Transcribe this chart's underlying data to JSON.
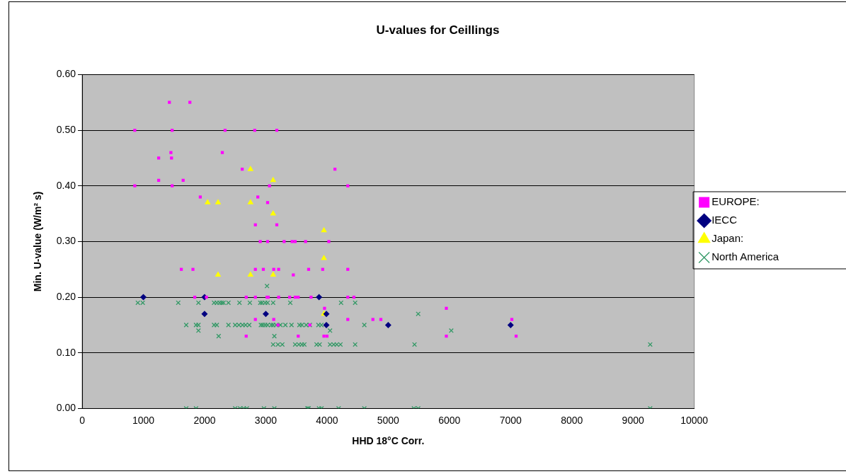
{
  "chart_data": {
    "type": "scatter",
    "title": "U-values for Ceillings",
    "xlabel": "HHD 18°C Corr.",
    "ylabel": "Min. U-value (W/m² s)",
    "xlim": [
      0,
      10000
    ],
    "xticks": [
      0,
      1000,
      2000,
      3000,
      4000,
      5000,
      6000,
      7000,
      8000,
      9000,
      10000
    ],
    "ylim": [
      0,
      0.6
    ],
    "yticks": [
      {
        "value": 0,
        "label": "0.00"
      },
      {
        "value": 0.1,
        "label": "0.10"
      },
      {
        "value": 0.2,
        "label": "0.20"
      },
      {
        "value": 0.3,
        "label": "0.30"
      },
      {
        "value": 0.4,
        "label": "0.40"
      },
      {
        "value": 0.5,
        "label": "0.50"
      },
      {
        "value": 0.6,
        "label": "0.60"
      }
    ],
    "grid": "y",
    "legend": "right",
    "series": [
      {
        "name": "EUROPE:",
        "color": "#ff00ff",
        "marker": "square",
        "x": [
          860,
          860,
          1425,
          1760,
          1470,
          2335,
          2820,
          3180,
          1450,
          1250,
          1460,
          1250,
          1650,
          1470,
          2290,
          2615,
          3060,
          1930,
          2870,
          3030,
          2830,
          3180,
          4130,
          4340,
          2910,
          3030,
          3300,
          3430,
          3480,
          3650,
          4030,
          1620,
          1810,
          2830,
          2960,
          3130,
          3210,
          3700,
          3930,
          4340,
          3450,
          1840,
          2030,
          2680,
          2830,
          3020,
          3040,
          3210,
          3390,
          3480,
          3530,
          3740,
          4340,
          4440,
          2830,
          3130,
          3200,
          3720,
          2680,
          3530,
          3960,
          3950,
          4000,
          4340,
          4750,
          4880,
          5950,
          5950,
          7020,
          7090
        ],
        "values": [
          0.5,
          0.4,
          0.55,
          0.55,
          0.5,
          0.5,
          0.5,
          0.5,
          0.46,
          0.45,
          0.45,
          0.41,
          0.41,
          0.4,
          0.46,
          0.43,
          0.4,
          0.38,
          0.38,
          0.37,
          0.33,
          0.33,
          0.43,
          0.4,
          0.3,
          0.3,
          0.3,
          0.3,
          0.3,
          0.3,
          0.3,
          0.25,
          0.25,
          0.25,
          0.25,
          0.25,
          0.25,
          0.25,
          0.25,
          0.25,
          0.24,
          0.2,
          0.2,
          0.2,
          0.2,
          0.2,
          0.2,
          0.2,
          0.2,
          0.2,
          0.2,
          0.2,
          0.2,
          0.2,
          0.16,
          0.16,
          0.15,
          0.15,
          0.13,
          0.13,
          0.18,
          0.13,
          0.13,
          0.16,
          0.16,
          0.16,
          0.18,
          0.13,
          0.16,
          0.13
        ]
      },
      {
        "name": "IECC",
        "color": "#000080",
        "marker": "diamond",
        "x": [
          1000,
          2000,
          2000,
          3000,
          3870,
          3990,
          3990,
          5000,
          7000
        ],
        "values": [
          0.2,
          0.2,
          0.17,
          0.17,
          0.2,
          0.17,
          0.15,
          0.15,
          0.15
        ]
      },
      {
        "name": "Japan:",
        "color": "#ffff00",
        "marker": "triangle",
        "x": [
          2750,
          3120,
          2050,
          2220,
          2750,
          3120,
          2220,
          2750,
          3120,
          3950,
          3950,
          3950
        ],
        "values": [
          0.43,
          0.41,
          0.37,
          0.37,
          0.37,
          0.35,
          0.24,
          0.24,
          0.24,
          0.32,
          0.27,
          0.17
        ]
      },
      {
        "name": "North America",
        "color": "#339966",
        "marker": "cross",
        "x": [
          910,
          990,
          1570,
          1900,
          2155,
          2200,
          2245,
          2280,
          2310,
          2390,
          2570,
          2740,
          2910,
          2940,
          2990,
          3030,
          3120,
          3400,
          4230,
          4460,
          1700,
          1860,
          1900,
          2155,
          2200,
          2390,
          2500,
          2560,
          2620,
          2670,
          2730,
          2920,
          2950,
          2990,
          3030,
          3090,
          3120,
          3170,
          3240,
          3320,
          3420,
          3550,
          3590,
          3660,
          3720,
          3860,
          3910,
          4610,
          1900,
          4050,
          6030,
          2230,
          3140,
          3120,
          3200,
          3270,
          3480,
          3540,
          3590,
          3630,
          3830,
          3880,
          4050,
          4110,
          4160,
          4220,
          4460,
          5430,
          9280,
          5490,
          3020,
          1700,
          1860,
          2500,
          2580,
          2640,
          2690,
          2970,
          3140,
          3680,
          3700,
          3870,
          3910,
          4190,
          4610,
          5420,
          5490,
          9280
        ],
        "values": [
          0.19,
          0.19,
          0.19,
          0.19,
          0.19,
          0.19,
          0.19,
          0.19,
          0.19,
          0.19,
          0.19,
          0.19,
          0.19,
          0.19,
          0.19,
          0.19,
          0.19,
          0.19,
          0.19,
          0.19,
          0.15,
          0.15,
          0.15,
          0.15,
          0.15,
          0.15,
          0.15,
          0.15,
          0.15,
          0.15,
          0.15,
          0.15,
          0.15,
          0.15,
          0.15,
          0.15,
          0.15,
          0.15,
          0.15,
          0.15,
          0.15,
          0.15,
          0.15,
          0.15,
          0.15,
          0.15,
          0.15,
          0.15,
          0.14,
          0.14,
          0.14,
          0.13,
          0.13,
          0.115,
          0.115,
          0.115,
          0.115,
          0.115,
          0.115,
          0.115,
          0.115,
          0.115,
          0.115,
          0.115,
          0.115,
          0.115,
          0.115,
          0.115,
          0.115,
          0.17,
          0.22,
          0,
          0,
          0,
          0,
          0,
          0,
          0,
          0,
          0,
          0,
          0,
          0,
          0,
          0,
          0,
          0,
          0
        ]
      }
    ]
  }
}
